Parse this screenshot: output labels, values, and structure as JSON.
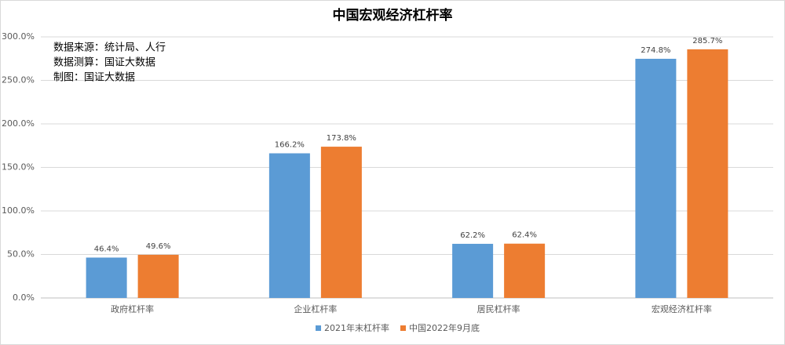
{
  "chart_data": {
    "type": "bar",
    "title": "中国宏观经济杠杆率",
    "annotations": [
      "数据来源：统计局、人行",
      "数据测算：国证大数据",
      "制图：国证大数据"
    ],
    "categories": [
      "政府杠杆率",
      "企业杠杆率",
      "居民杠杆率",
      "宏观经济杠杆率"
    ],
    "series": [
      {
        "name": "2021年末杠杆率",
        "color": "#5b9bd5",
        "values": [
          46.4,
          166.2,
          62.2,
          274.8
        ],
        "value_labels": [
          "46.4%",
          "166.2%",
          "62.2%",
          "274.8%"
        ]
      },
      {
        "name": "中国2022年9月底",
        "color": "#ed7d31",
        "values": [
          49.6,
          173.8,
          62.4,
          285.7
        ],
        "value_labels": [
          "49.6%",
          "173.8%",
          "62.4%",
          "285.7%"
        ]
      }
    ],
    "ylim": [
      0,
      300
    ],
    "yticks": [
      {
        "value": 0,
        "label": "0.0%"
      },
      {
        "value": 50,
        "label": "50.0%"
      },
      {
        "value": 100,
        "label": "100.0%"
      },
      {
        "value": 150,
        "label": "150.0%"
      },
      {
        "value": 200,
        "label": "200.0%"
      },
      {
        "value": 250,
        "label": "250.0%"
      },
      {
        "value": 300,
        "label": "300.0%"
      }
    ],
    "grid": true,
    "legend": "bottom"
  }
}
